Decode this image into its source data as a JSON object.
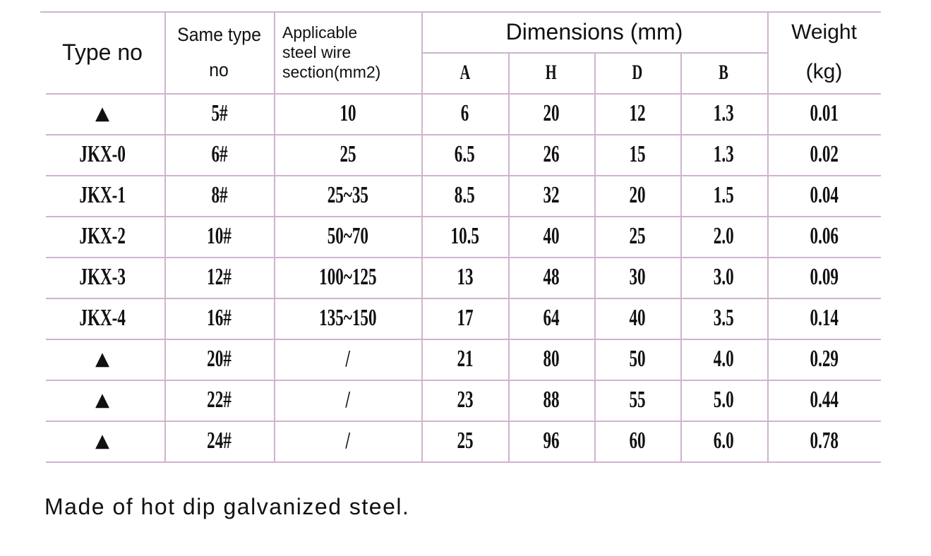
{
  "table": {
    "header": {
      "type_no": "Type no",
      "same_type_no": [
        "Same type",
        "no"
      ],
      "wire_section": [
        "Applicable",
        "steel wire",
        "section(mm2)"
      ],
      "dimensions": "Dimensions (mm)",
      "dimension_columns": [
        "A",
        "H",
        "D",
        "B"
      ],
      "weight": [
        "Weight",
        "(kg)"
      ]
    },
    "rows": [
      [
        "▲",
        "5#",
        "10",
        "6",
        "20",
        "12",
        "1.3",
        "0.01"
      ],
      [
        "JKX-0",
        "6#",
        "25",
        "6.5",
        "26",
        "15",
        "1.3",
        "0.02"
      ],
      [
        "JKX-1",
        "8#",
        "25~35",
        "8.5",
        "32",
        "20",
        "1.5",
        "0.04"
      ],
      [
        "JKX-2",
        "10#",
        "50~70",
        "10.5",
        "40",
        "25",
        "2.0",
        "0.06"
      ],
      [
        "JKX-3",
        "12#",
        "100~125",
        "13",
        "48",
        "30",
        "3.0",
        "0.09"
      ],
      [
        "JKX-4",
        "16#",
        "135~150",
        "17",
        "64",
        "40",
        "3.5",
        "0.14"
      ],
      [
        "▲",
        "20#",
        "/",
        "21",
        "80",
        "50",
        "4.0",
        "0.29"
      ],
      [
        "▲",
        "22#",
        "/",
        "23",
        "88",
        "55",
        "5.0",
        "0.44"
      ],
      [
        "▲",
        "24#",
        "/",
        "25",
        "96",
        "60",
        "6.0",
        "0.78"
      ]
    ]
  },
  "note": "Made of hot dip galvanized steel."
}
